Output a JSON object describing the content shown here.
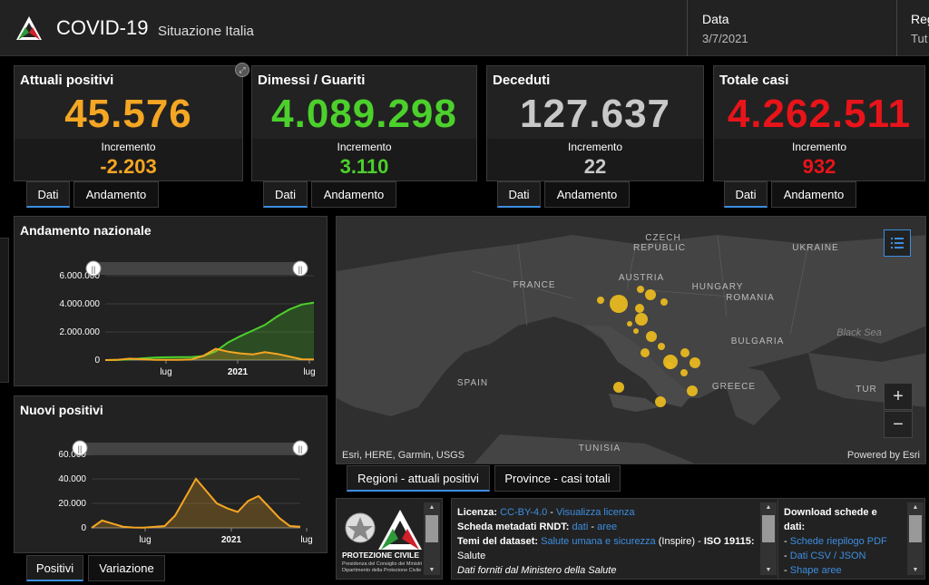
{
  "header": {
    "title": "COVID-19",
    "subtitle": "Situazione Italia",
    "date_label": "Data",
    "date_value": "3/7/2021",
    "region_label": "Reg",
    "region_value": "Tut"
  },
  "cards": [
    {
      "title": "Attuali positivi",
      "value": "45.576",
      "inc_label": "Incremento",
      "inc_value": "-2.203",
      "color": "#f5a623",
      "tabs": [
        "Dati",
        "Andamento"
      ]
    },
    {
      "title": "Dimessi / Guariti",
      "value": "4.089.298",
      "inc_label": "Incremento",
      "inc_value": "3.110",
      "color": "#4cd02c",
      "tabs": [
        "Dati",
        "Andamento"
      ]
    },
    {
      "title": "Deceduti",
      "value": "127.637",
      "inc_label": "Incremento",
      "inc_value": "22",
      "color": "#c8c8c8",
      "tabs": [
        "Dati",
        "Andamento"
      ]
    },
    {
      "title": "Totale casi",
      "value": "4.262.511",
      "inc_label": "Incremento",
      "inc_value": "932",
      "color": "#e8141a",
      "tabs": [
        "Dati",
        "Andamento"
      ]
    }
  ],
  "chart_data": [
    {
      "type": "line",
      "title": "Andamento nazionale",
      "yticks": [
        "6.000.000",
        "4.000.000",
        "2.000.000",
        "0"
      ],
      "xticks": [
        "lug",
        "2021",
        "lug"
      ],
      "ylim": [
        0,
        6000000
      ],
      "x": [
        "2020-02",
        "2020-03",
        "2020-04",
        "2020-05",
        "2020-06",
        "2020-07",
        "2020-08",
        "2020-09",
        "2020-10",
        "2020-11",
        "2020-12",
        "2021-01",
        "2021-02",
        "2021-03",
        "2021-04",
        "2021-05",
        "2021-06",
        "2021-07"
      ],
      "series": [
        {
          "color": "#4cd02c",
          "values": [
            0,
            5000,
            50000,
            120000,
            180000,
            200000,
            205000,
            215000,
            290000,
            620000,
            1250000,
            1700000,
            2100000,
            2500000,
            3100000,
            3600000,
            3950000,
            4089298
          ]
        },
        {
          "color": "#f5a623",
          "values": [
            0,
            20000,
            100000,
            60000,
            20000,
            13000,
            15000,
            40000,
            300000,
            800000,
            600000,
            480000,
            400000,
            560000,
            440000,
            250000,
            60000,
            45576
          ]
        }
      ]
    },
    {
      "type": "area",
      "title": "Nuovi positivi",
      "yticks": [
        "60.000",
        "40.000",
        "20.000",
        "0"
      ],
      "xticks": [
        "lug",
        "2021",
        "lug"
      ],
      "ylim": [
        0,
        60000
      ],
      "x": [
        "2020-02",
        "2020-03",
        "2020-04",
        "2020-05",
        "2020-06",
        "2020-07",
        "2020-08",
        "2020-09",
        "2020-10",
        "2020-10b",
        "2020-11a",
        "2020-11b",
        "2020-12",
        "2021-01",
        "2021-02",
        "2021-03a",
        "2021-03b",
        "2021-04",
        "2021-05",
        "2021-06",
        "2021-07"
      ],
      "series": [
        {
          "color": "#f5a623",
          "values": [
            0,
            6000,
            3500,
            1000,
            300,
            200,
            800,
            1500,
            10000,
            25000,
            40000,
            30000,
            20000,
            16000,
            13000,
            22000,
            26000,
            17000,
            8000,
            1500,
            900
          ]
        }
      ]
    }
  ],
  "chart_tabs": [
    "Positivi",
    "Variazione"
  ],
  "map": {
    "labels": [
      "CZECH",
      "REPUBLIC",
      "UKRAINE",
      "FRANCE",
      "AUSTRIA",
      "HUNGARY",
      "ROMANIA",
      "BULGARIA",
      "SPAIN",
      "GREECE",
      "TUNISIA",
      "TUR"
    ],
    "sea_label": "Black Sea",
    "attribution": "Esri, HERE, Garmin, USGS",
    "powered": "Powered by Esri",
    "zoom_in": "+",
    "zoom_out": "−",
    "marker_color": "#e8b820"
  },
  "map_tabs": [
    "Regioni - attuali positivi",
    "Province - casi totali"
  ],
  "info": {
    "logo_text": "PROTEZIONE CIVILE",
    "logo_sub1": "Presidenza del Consiglio dei Ministri",
    "logo_sub2": "Dipartimento della Protezione Civile",
    "license_label": "Licenza:",
    "license_link": "CC-BY-4.0",
    "license_sep": " - ",
    "license_view": "Visualizza licenza",
    "metadata_label": "Scheda metadati RNDT:",
    "metadata_link1": "dati",
    "metadata_sep": " - ",
    "metadata_link2": "aree",
    "themes_label": "Temi del dataset:",
    "themes_link": "Salute umana e sicurezza",
    "themes_rest": "(Inspire) -",
    "iso_label": "ISO 19115:",
    "themes_value": "Salute",
    "source": "Dati forniti dal Ministero della Salute"
  },
  "download": {
    "title1": "Download schede e",
    "title2": "dati:",
    "items": [
      "Schede riepilogo PDF",
      "Dati CSV / JSON",
      "Shape aree"
    ],
    "bullet": "- "
  }
}
